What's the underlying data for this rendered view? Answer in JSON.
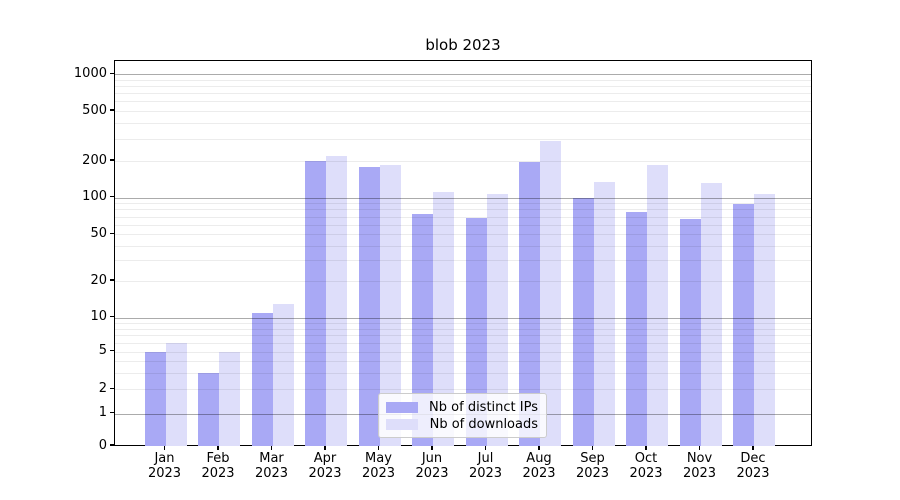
{
  "chart_data": {
    "type": "bar",
    "title": "blob 2023",
    "categories": [
      "Jan",
      "Feb",
      "Mar",
      "Apr",
      "May",
      "Jun",
      "Jul",
      "Aug",
      "Sep",
      "Oct",
      "Nov",
      "Dec"
    ],
    "category_year": "2023",
    "series": [
      {
        "key": "ips",
        "name": "Nb of distinct IPs",
        "color": "#a9a9f5",
        "values": [
          5,
          3,
          11,
          200,
          180,
          73,
          68,
          195,
          100,
          77,
          67,
          88
        ]
      },
      {
        "key": "downloads",
        "name": "Nb of downloads",
        "color": "#dedefa",
        "values": [
          6,
          5,
          13,
          220,
          185,
          112,
          108,
          290,
          135,
          185,
          132,
          108
        ]
      }
    ],
    "xlabel": "",
    "ylabel": "",
    "yscale": "symlog",
    "ylim": [
      0,
      1300
    ],
    "yticks": [
      0,
      1,
      2,
      5,
      10,
      20,
      50,
      100,
      200,
      500,
      1000
    ],
    "ytick_labels": [
      "0",
      "1",
      "2",
      "5",
      "10",
      "20",
      "50",
      "100",
      "200",
      "500",
      "1000"
    ],
    "major_grid_values": [
      1,
      10,
      100,
      1000
    ],
    "minor_grid_values": [
      2,
      3,
      4,
      5,
      6,
      7,
      8,
      9,
      20,
      30,
      40,
      50,
      60,
      70,
      80,
      90,
      200,
      300,
      400,
      500,
      600,
      700,
      800,
      900
    ],
    "grid": true,
    "legend": {
      "position": "lower-center-inside"
    }
  }
}
